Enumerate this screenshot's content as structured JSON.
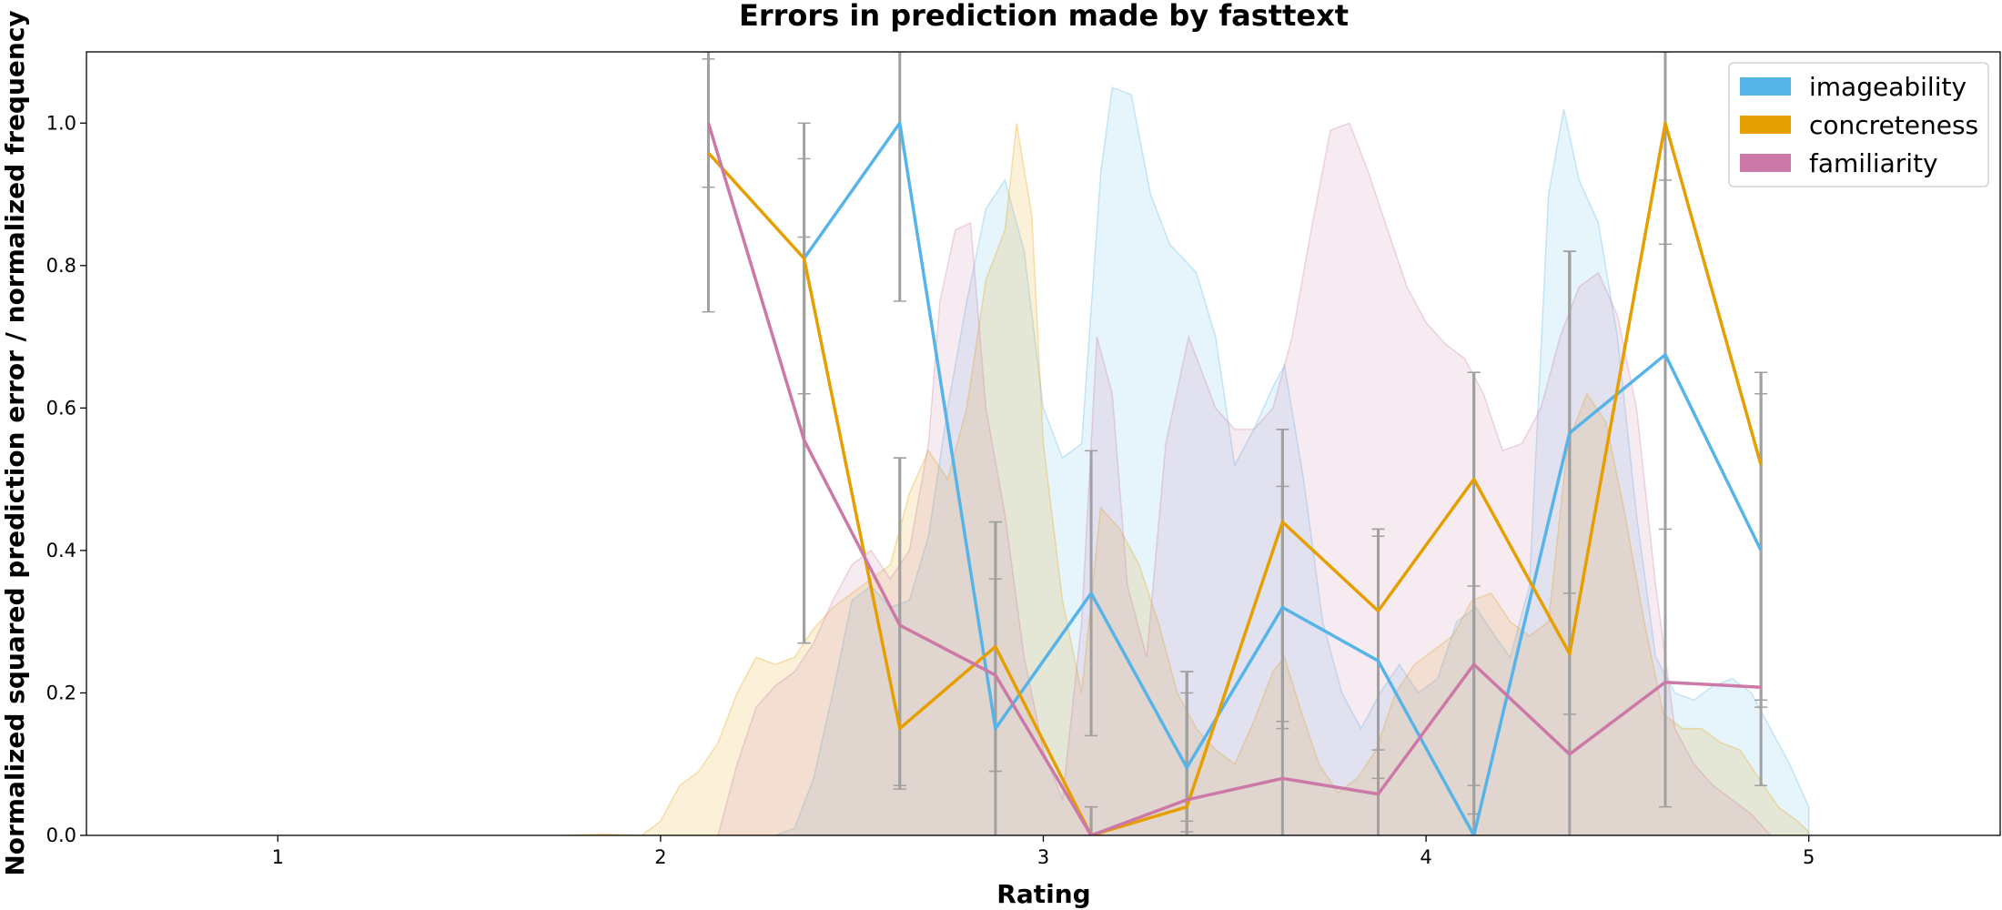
{
  "chart_data": {
    "type": "line",
    "title": "Errors in prediction made by fasttext",
    "xlabel": "Rating",
    "ylabel": "Normalized squared prediction error / normalized frequency",
    "xlim": [
      0.5,
      5.5
    ],
    "ylim": [
      0.0,
      1.1
    ],
    "xticks": [
      "1",
      "2",
      "3",
      "4",
      "5"
    ],
    "yticks": [
      "0.0",
      "0.2",
      "0.4",
      "0.6",
      "0.8",
      "1.0"
    ],
    "legend_position": "top-right",
    "x": [
      2.125,
      2.375,
      2.625,
      2.875,
      3.125,
      3.375,
      3.625,
      3.875,
      4.125,
      4.375,
      4.625,
      4.875
    ],
    "series": [
      {
        "name": "imageability",
        "color": "#56b4e9",
        "values": [
          null,
          0.81,
          1.0,
          0.15,
          0.34,
          0.095,
          0.32,
          0.245,
          0.0,
          0.565,
          0.675,
          0.4
        ],
        "error_low": [
          null,
          0.62,
          0.75,
          0.09,
          0.14,
          0.02,
          0.16,
          0.08,
          0.0,
          0.34,
          0.43,
          0.19
        ],
        "error_high": [
          null,
          0.95,
          1.1,
          0.36,
          0.54,
          0.2,
          0.49,
          0.42,
          0.35,
          0.82,
          0.92,
          0.62
        ],
        "density": [
          [
            2.3,
            0.0
          ],
          [
            2.35,
            0.01
          ],
          [
            2.4,
            0.08
          ],
          [
            2.45,
            0.2
          ],
          [
            2.5,
            0.33
          ],
          [
            2.55,
            0.35
          ],
          [
            2.6,
            0.32
          ],
          [
            2.65,
            0.33
          ],
          [
            2.7,
            0.42
          ],
          [
            2.75,
            0.6
          ],
          [
            2.8,
            0.75
          ],
          [
            2.85,
            0.88
          ],
          [
            2.9,
            0.92
          ],
          [
            2.95,
            0.82
          ],
          [
            3.0,
            0.6
          ],
          [
            3.05,
            0.53
          ],
          [
            3.1,
            0.55
          ],
          [
            3.15,
            0.93
          ],
          [
            3.18,
            1.05
          ],
          [
            3.23,
            1.04
          ],
          [
            3.28,
            0.9
          ],
          [
            3.33,
            0.83
          ],
          [
            3.4,
            0.79
          ],
          [
            3.45,
            0.7
          ],
          [
            3.5,
            0.52
          ],
          [
            3.55,
            0.57
          ],
          [
            3.6,
            0.63
          ],
          [
            3.63,
            0.66
          ],
          [
            3.68,
            0.5
          ],
          [
            3.73,
            0.3
          ],
          [
            3.78,
            0.2
          ],
          [
            3.83,
            0.15
          ],
          [
            3.88,
            0.2
          ],
          [
            3.93,
            0.24
          ],
          [
            3.98,
            0.2
          ],
          [
            4.03,
            0.22
          ],
          [
            4.08,
            0.3
          ],
          [
            4.13,
            0.32
          ],
          [
            4.18,
            0.28
          ],
          [
            4.22,
            0.25
          ],
          [
            4.27,
            0.35
          ],
          [
            4.32,
            0.9
          ],
          [
            4.36,
            1.02
          ],
          [
            4.4,
            0.92
          ],
          [
            4.45,
            0.86
          ],
          [
            4.5,
            0.7
          ],
          [
            4.55,
            0.45
          ],
          [
            4.6,
            0.25
          ],
          [
            4.65,
            0.2
          ],
          [
            4.7,
            0.19
          ],
          [
            4.75,
            0.21
          ],
          [
            4.8,
            0.22
          ],
          [
            4.85,
            0.2
          ],
          [
            4.9,
            0.15
          ],
          [
            4.95,
            0.1
          ],
          [
            5.0,
            0.04
          ]
        ]
      },
      {
        "name": "concreteness",
        "color": "#e69f00",
        "values": [
          0.958,
          0.81,
          0.15,
          0.265,
          0.0,
          0.04,
          0.44,
          0.315,
          0.5,
          0.255,
          1.0,
          0.52
        ],
        "error_low": [
          0.735,
          0.27,
          0.07,
          0.09,
          0.0,
          0.005,
          0.15,
          0.12,
          0.07,
          0.17,
          0.83,
          0.18
        ],
        "error_high": [
          1.09,
          1.0,
          0.53,
          0.44,
          0.04,
          0.23,
          0.57,
          0.43,
          0.65,
          0.82,
          1.1,
          0.65
        ],
        "density": [
          [
            1.75,
            0.0
          ],
          [
            1.85,
            0.002
          ],
          [
            1.95,
            0.0
          ],
          [
            2.0,
            0.02
          ],
          [
            2.05,
            0.07
          ],
          [
            2.1,
            0.09
          ],
          [
            2.15,
            0.13
          ],
          [
            2.2,
            0.2
          ],
          [
            2.25,
            0.25
          ],
          [
            2.3,
            0.24
          ],
          [
            2.35,
            0.25
          ],
          [
            2.4,
            0.29
          ],
          [
            2.45,
            0.32
          ],
          [
            2.5,
            0.34
          ],
          [
            2.55,
            0.36
          ],
          [
            2.6,
            0.38
          ],
          [
            2.65,
            0.48
          ],
          [
            2.7,
            0.54
          ],
          [
            2.75,
            0.5
          ],
          [
            2.8,
            0.6
          ],
          [
            2.85,
            0.78
          ],
          [
            2.9,
            0.85
          ],
          [
            2.93,
            1.0
          ],
          [
            2.97,
            0.87
          ],
          [
            3.0,
            0.55
          ],
          [
            3.05,
            0.33
          ],
          [
            3.1,
            0.2
          ],
          [
            3.15,
            0.46
          ],
          [
            3.2,
            0.43
          ],
          [
            3.25,
            0.38
          ],
          [
            3.3,
            0.3
          ],
          [
            3.35,
            0.2
          ],
          [
            3.4,
            0.15
          ],
          [
            3.45,
            0.12
          ],
          [
            3.5,
            0.1
          ],
          [
            3.55,
            0.16
          ],
          [
            3.6,
            0.23
          ],
          [
            3.63,
            0.25
          ],
          [
            3.67,
            0.18
          ],
          [
            3.72,
            0.1
          ],
          [
            3.77,
            0.06
          ],
          [
            3.82,
            0.08
          ],
          [
            3.87,
            0.12
          ],
          [
            3.92,
            0.2
          ],
          [
            3.97,
            0.24
          ],
          [
            4.02,
            0.26
          ],
          [
            4.07,
            0.28
          ],
          [
            4.12,
            0.33
          ],
          [
            4.17,
            0.34
          ],
          [
            4.22,
            0.3
          ],
          [
            4.27,
            0.28
          ],
          [
            4.32,
            0.3
          ],
          [
            4.37,
            0.55
          ],
          [
            4.42,
            0.62
          ],
          [
            4.47,
            0.58
          ],
          [
            4.52,
            0.45
          ],
          [
            4.57,
            0.3
          ],
          [
            4.62,
            0.17
          ],
          [
            4.67,
            0.15
          ],
          [
            4.72,
            0.15
          ],
          [
            4.77,
            0.13
          ],
          [
            4.82,
            0.12
          ],
          [
            4.87,
            0.08
          ],
          [
            4.92,
            0.04
          ],
          [
            4.97,
            0.02
          ],
          [
            5.0,
            0.005
          ]
        ]
      },
      {
        "name": "familiarity",
        "color": "#cc79a7",
        "values": [
          1.0,
          0.555,
          0.295,
          0.225,
          0.0,
          0.05,
          0.08,
          0.058,
          0.24,
          0.114,
          0.215,
          0.208
        ],
        "error_low": [
          0.91,
          0.27,
          0.065,
          0.0,
          0.0,
          0.0,
          0.0,
          0.0,
          0.03,
          0.0,
          0.04,
          0.07
        ],
        "error_high": [
          1.1,
          0.84,
          0.53,
          0.44,
          0.04,
          0.23,
          0.57,
          0.43,
          0.65,
          0.82,
          1.1,
          0.65
        ],
        "density": [
          [
            2.15,
            0.0
          ],
          [
            2.2,
            0.1
          ],
          [
            2.25,
            0.18
          ],
          [
            2.3,
            0.21
          ],
          [
            2.35,
            0.23
          ],
          [
            2.4,
            0.27
          ],
          [
            2.45,
            0.33
          ],
          [
            2.5,
            0.38
          ],
          [
            2.55,
            0.4
          ],
          [
            2.6,
            0.36
          ],
          [
            2.65,
            0.4
          ],
          [
            2.7,
            0.55
          ],
          [
            2.73,
            0.75
          ],
          [
            2.77,
            0.85
          ],
          [
            2.81,
            0.86
          ],
          [
            2.85,
            0.6
          ],
          [
            2.9,
            0.45
          ],
          [
            2.95,
            0.25
          ],
          [
            3.0,
            0.12
          ],
          [
            3.05,
            0.05
          ],
          [
            3.1,
            0.3
          ],
          [
            3.14,
            0.7
          ],
          [
            3.18,
            0.62
          ],
          [
            3.22,
            0.35
          ],
          [
            3.27,
            0.25
          ],
          [
            3.32,
            0.55
          ],
          [
            3.38,
            0.7
          ],
          [
            3.45,
            0.6
          ],
          [
            3.5,
            0.57
          ],
          [
            3.55,
            0.57
          ],
          [
            3.6,
            0.6
          ],
          [
            3.65,
            0.7
          ],
          [
            3.7,
            0.85
          ],
          [
            3.75,
            0.99
          ],
          [
            3.8,
            1.0
          ],
          [
            3.85,
            0.93
          ],
          [
            3.9,
            0.85
          ],
          [
            3.95,
            0.77
          ],
          [
            4.0,
            0.72
          ],
          [
            4.05,
            0.69
          ],
          [
            4.1,
            0.67
          ],
          [
            4.15,
            0.62
          ],
          [
            4.2,
            0.54
          ],
          [
            4.25,
            0.55
          ],
          [
            4.3,
            0.6
          ],
          [
            4.35,
            0.7
          ],
          [
            4.4,
            0.77
          ],
          [
            4.45,
            0.79
          ],
          [
            4.5,
            0.73
          ],
          [
            4.55,
            0.6
          ],
          [
            4.6,
            0.35
          ],
          [
            4.65,
            0.15
          ],
          [
            4.7,
            0.1
          ],
          [
            4.75,
            0.07
          ],
          [
            4.8,
            0.05
          ],
          [
            4.85,
            0.03
          ],
          [
            4.9,
            0.0
          ]
        ]
      }
    ]
  }
}
